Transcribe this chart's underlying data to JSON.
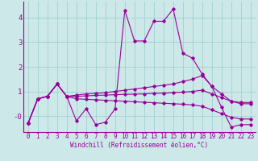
{
  "background_color": "#cce8e8",
  "grid_color": "#99cccc",
  "line_color": "#990099",
  "marker": "D",
  "markersize": 1.8,
  "linewidth": 0.8,
  "xlabel": "Windchill (Refroidissement éolien,°C)",
  "xlabel_fontsize": 5.5,
  "tick_fontsize": 5.5,
  "ytick_fontsize": 6.5,
  "ylim": [
    -0.65,
    4.65
  ],
  "xlim": [
    -0.5,
    23.5
  ],
  "yticks": [
    0,
    1,
    2,
    3,
    4
  ],
  "ytick_labels": [
    "-0",
    "1",
    "2",
    "3",
    "4"
  ],
  "xticks": [
    0,
    1,
    2,
    3,
    4,
    5,
    6,
    7,
    8,
    9,
    10,
    11,
    12,
    13,
    14,
    15,
    16,
    17,
    18,
    19,
    20,
    21,
    22,
    23
  ],
  "series1_x": [
    0,
    1,
    2,
    3,
    4,
    5,
    6,
    7,
    8,
    9,
    10,
    11,
    12,
    13,
    14,
    15,
    16,
    17,
    18,
    19,
    20,
    21,
    22,
    23
  ],
  "series1_y": [
    -0.3,
    0.7,
    0.8,
    1.3,
    0.8,
    -0.2,
    0.3,
    -0.35,
    -0.25,
    0.3,
    4.3,
    3.05,
    3.05,
    3.85,
    3.85,
    4.35,
    2.55,
    2.35,
    1.7,
    1.2,
    0.35,
    -0.45,
    -0.35,
    -0.35
  ],
  "series2_x": [
    0,
    1,
    2,
    3,
    4,
    5,
    6,
    7,
    8,
    9,
    10,
    11,
    12,
    13,
    14,
    15,
    16,
    17,
    18,
    19,
    20,
    21,
    22,
    23
  ],
  "series2_y": [
    -0.3,
    0.7,
    0.8,
    1.3,
    0.8,
    0.85,
    0.9,
    0.92,
    0.95,
    1.0,
    1.05,
    1.1,
    1.15,
    1.2,
    1.25,
    1.3,
    1.4,
    1.5,
    1.65,
    1.2,
    0.9,
    0.6,
    0.5,
    0.5
  ],
  "series3_x": [
    0,
    1,
    2,
    3,
    4,
    5,
    6,
    7,
    8,
    9,
    10,
    11,
    12,
    13,
    14,
    15,
    16,
    17,
    18,
    19,
    20,
    21,
    22,
    23
  ],
  "series3_y": [
    -0.3,
    0.7,
    0.8,
    1.3,
    0.8,
    0.8,
    0.82,
    0.84,
    0.85,
    0.87,
    0.88,
    0.89,
    0.9,
    0.92,
    0.93,
    0.95,
    0.97,
    1.0,
    1.05,
    0.9,
    0.75,
    0.6,
    0.55,
    0.55
  ],
  "series4_x": [
    0,
    1,
    2,
    3,
    4,
    5,
    6,
    7,
    8,
    9,
    10,
    11,
    12,
    13,
    14,
    15,
    16,
    17,
    18,
    19,
    20,
    21,
    22,
    23
  ],
  "series4_y": [
    -0.3,
    0.7,
    0.8,
    1.3,
    0.8,
    0.7,
    0.68,
    0.66,
    0.64,
    0.62,
    0.6,
    0.58,
    0.56,
    0.54,
    0.52,
    0.5,
    0.48,
    0.45,
    0.4,
    0.25,
    0.1,
    -0.05,
    -0.12,
    -0.12
  ]
}
